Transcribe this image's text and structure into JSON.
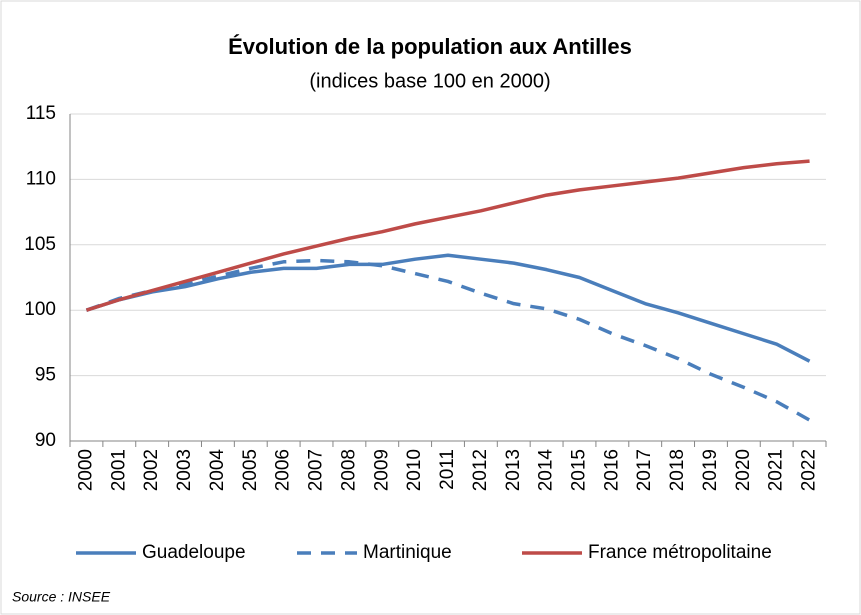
{
  "chart_data": {
    "type": "line",
    "title": "Évolution de la population aux Antilles",
    "subtitle": "(indices base 100 en 2000)",
    "source": "Source : INSEE",
    "categories": [
      "2000",
      "2001",
      "2002",
      "2003",
      "2004",
      "2005",
      "2006",
      "2007",
      "2008",
      "2009",
      "2010",
      "2011",
      "2012",
      "2013",
      "2014",
      "2015",
      "2016",
      "2017",
      "2018",
      "2019",
      "2020",
      "2021",
      "2022"
    ],
    "series": [
      {
        "name": "Guadeloupe",
        "color": "#4a7ebb",
        "dashed": false,
        "values": [
          100,
          100.8,
          101.4,
          101.8,
          102.4,
          102.9,
          103.2,
          103.2,
          103.5,
          103.5,
          103.9,
          104.2,
          103.9,
          103.6,
          103.1,
          102.5,
          101.5,
          100.5,
          99.8,
          99.0,
          98.2,
          97.4,
          96.1
        ]
      },
      {
        "name": "Martinique",
        "color": "#4a7ebb",
        "dashed": true,
        "values": [
          100,
          100.9,
          101.5,
          102.0,
          102.6,
          103.2,
          103.7,
          103.8,
          103.7,
          103.4,
          102.8,
          102.2,
          101.3,
          100.5,
          100.1,
          99.3,
          98.2,
          97.3,
          96.3,
          95.1,
          94.1,
          93.0,
          91.6
        ]
      },
      {
        "name": "France métropolitaine",
        "color": "#be4b48",
        "dashed": false,
        "values": [
          100,
          100.8,
          101.5,
          102.2,
          102.9,
          103.6,
          104.3,
          104.9,
          105.5,
          106.0,
          106.6,
          107.1,
          107.6,
          108.2,
          108.8,
          109.2,
          109.5,
          109.8,
          110.1,
          110.5,
          110.9,
          111.2,
          111.4
        ]
      }
    ],
    "ylim": [
      90,
      115
    ],
    "yticks": [
      90,
      95,
      100,
      105,
      110,
      115
    ],
    "grid": true
  }
}
